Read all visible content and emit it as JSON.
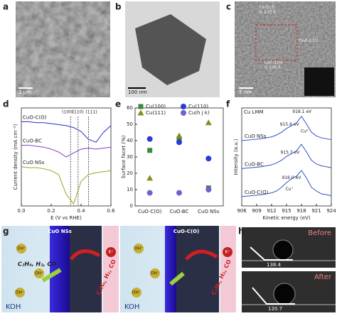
{
  "panel_labels": [
    "a",
    "b",
    "c",
    "d",
    "e",
    "f",
    "g",
    "h"
  ],
  "micrographs": {
    "a_scale": "1 μm",
    "b_scale": "100 nm",
    "c_scale": "5 nm",
    "c_notes": [
      "Cu (111)",
      "d: 2.02 Å",
      "Cu₂O (111)",
      "CuO (110)",
      "d: 3.00 Å"
    ]
  },
  "chart_data": [
    {
      "type": "line",
      "ylabel": "Current density (mA cm⁻²)",
      "xlabel": "E (V vs RHE)",
      "x": [
        0,
        0.05,
        0.1,
        0.15,
        0.2,
        0.25,
        0.3,
        0.35,
        0.4,
        0.45,
        0.5,
        0.55,
        0.6
      ],
      "xlim": [
        0,
        0.6
      ],
      "ylim": [
        0,
        10
      ],
      "xticks": [
        {
          "value": 0,
          "label": "0.0"
        },
        {
          "value": 0.2,
          "label": "0.2"
        },
        {
          "value": 0.4,
          "label": "0.4"
        },
        {
          "value": 0.6,
          "label": "0.6"
        }
      ],
      "series": [
        {
          "name": "CuO-C(O)",
          "color": "#2030c0",
          "values": [
            8.6,
            8.6,
            8.5,
            8.5,
            8.4,
            8.3,
            8.2,
            8.0,
            7.6,
            6.8,
            6.5,
            7.5,
            8.2
          ]
        },
        {
          "name": "CuO-BC",
          "color": "#8040c0",
          "values": [
            6.2,
            6.2,
            6.1,
            6.0,
            5.8,
            5.5,
            5.0,
            5.4,
            5.8,
            5.9,
            5.8,
            5.9,
            6.0
          ]
        },
        {
          "name": "CuO NSs",
          "color": "#a0a020",
          "values": [
            4.0,
            3.9,
            3.9,
            3.8,
            3.6,
            3.2,
            1.2,
            0.2,
            2.5,
            3.2,
            3.4,
            3.5,
            3.6
          ]
        }
      ],
      "annotations": [
        {
          "text": "(100)",
          "x": 0.33
        },
        {
          "text": "(110)",
          "x": 0.38
        },
        {
          "text": "(111)",
          "x": 0.45
        }
      ]
    },
    {
      "type": "scatter",
      "ylabel": "Surface facet (%)",
      "categories": [
        "CuO-C(O)",
        "CuO-BC",
        "CuO NSs"
      ],
      "ylim": [
        0,
        60
      ],
      "yticks": [
        0,
        10,
        20,
        30,
        40,
        50,
        60
      ],
      "legend": "top",
      "series": [
        {
          "name": "Cu(100)",
          "color": "#3a8a3a",
          "marker": "square",
          "values": [
            34,
            41,
            11
          ]
        },
        {
          "name": "Cu(110)",
          "color": "#2a3bd6",
          "marker": "circle",
          "values": [
            41,
            39,
            29
          ]
        },
        {
          "name": "Cu(111)",
          "color": "#8a8a20",
          "marker": "triangle",
          "values": [
            17,
            43,
            51
          ]
        },
        {
          "name": "Cu(h j k)",
          "color": "#7060d0",
          "marker": "circle",
          "values": [
            8,
            8,
            10
          ]
        }
      ]
    },
    {
      "type": "line",
      "title": "Cu LMM",
      "ylabel": "Intensity (a.u.)",
      "xlabel": "Kinetic energy (eV)",
      "x": [
        906,
        908,
        910,
        912,
        913,
        914,
        915,
        916,
        917,
        918,
        919,
        920,
        921,
        922,
        924
      ],
      "xlim": [
        906,
        924
      ],
      "ylim": [
        0,
        10.5
      ],
      "xticks": [
        906,
        909,
        912,
        915,
        918,
        921,
        924
      ],
      "series": [
        {
          "name": "CuO NSs",
          "color": "#3050c0",
          "values": [
            7.0,
            7.1,
            7.2,
            7.4,
            7.6,
            7.9,
            8.3,
            8.6,
            8.9,
            9.6,
            8.8,
            7.9,
            7.5,
            7.3,
            7.1
          ]
        },
        {
          "name": "CuO-BC",
          "color": "#3050c0",
          "values": [
            4.0,
            4.1,
            4.2,
            4.4,
            4.6,
            4.9,
            5.3,
            5.6,
            5.9,
            6.6,
            5.8,
            4.9,
            4.5,
            4.3,
            4.1
          ]
        },
        {
          "name": "CuO-C(O)",
          "color": "#3050c0",
          "values": [
            1.0,
            1.1,
            1.2,
            1.4,
            1.6,
            2.0,
            2.5,
            2.9,
            3.2,
            3.8,
            3.0,
            2.0,
            1.6,
            1.3,
            1.1
          ]
        }
      ],
      "annotations": [
        {
          "text": "918.1 eV",
          "x": 918.1,
          "y": 10.1
        },
        {
          "text": "915.6 eV",
          "x": 915.6,
          "y": 8.7
        },
        {
          "text": "915.7 eV",
          "x": 915.7,
          "y": 5.7
        },
        {
          "text": "916.0 eV",
          "x": 916.0,
          "y": 3.0
        },
        {
          "text": "Cu⁰",
          "x": 918.6,
          "y": 8.0
        },
        {
          "text": "Cu⁺",
          "x": 915.6,
          "y": 1.8
        }
      ]
    }
  ],
  "diagram": {
    "left_title": "CuO NSs",
    "right_title": "CuO-C(O)",
    "anion": "OH⁻",
    "cation": "K⁺",
    "products": "C₂H₄, H₂, CO",
    "electrolyte": "KOH"
  },
  "contact_angle": {
    "before_label": "Before",
    "before_angle": 138.4,
    "after_label": "After",
    "after_angle": 120.7
  }
}
